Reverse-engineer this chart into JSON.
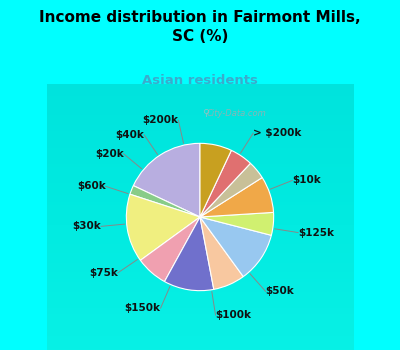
{
  "title": "Income distribution in Fairmont Mills,\nSC (%)",
  "subtitle": "Asian residents",
  "title_color": "#000000",
  "subtitle_color": "#3aaccc",
  "background_color": "#00ffff",
  "chart_bg_top": "#d8f0e8",
  "chart_bg_bottom": "#e8f8f0",
  "watermark": "City-Data.com",
  "labels": [
    "> $200k",
    "$10k",
    "$125k",
    "$50k",
    "$100k",
    "$150k",
    "$75k",
    "$30k",
    "$60k",
    "$20k",
    "$40k",
    "$200k"
  ],
  "sizes": [
    18,
    2,
    15,
    7,
    11,
    7,
    11,
    5,
    8,
    4,
    5,
    7
  ],
  "colors": [
    "#b8aee0",
    "#88cc88",
    "#f0ef80",
    "#f0a0b0",
    "#7070cc",
    "#f8c8a0",
    "#98c8f0",
    "#d0f070",
    "#f0a848",
    "#c8c098",
    "#e07070",
    "#c8a020"
  ],
  "startangle": 90,
  "label_fontsize": 7.5,
  "title_fontsize": 11,
  "subtitle_fontsize": 9.5
}
